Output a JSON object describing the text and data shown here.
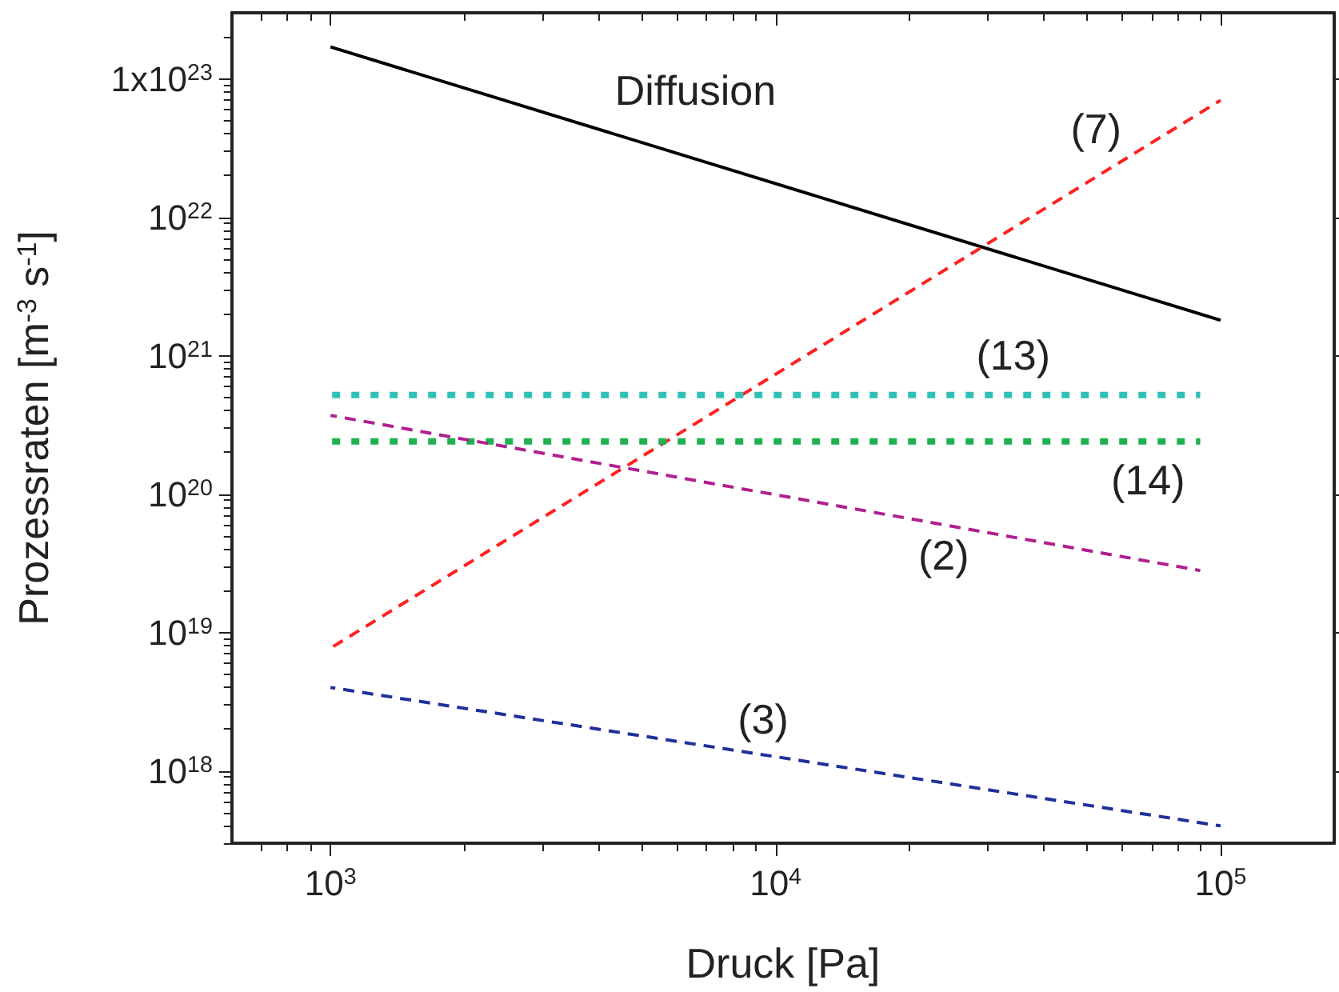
{
  "chart_data": {
    "type": "line",
    "xlabel": "Druck [Pa]",
    "ylabel": "Prozessraten [m$^{-3}$ s$^{-1}$]",
    "log": "xy",
    "grid": false,
    "legend": false,
    "marker": "none",
    "xlim": [
      600,
      180000
    ],
    "xticks": [
      {
        "value": 1000,
        "label": "10$^{3}$"
      },
      {
        "value": 10000,
        "label": "10$^{4}$"
      },
      {
        "value": 100000,
        "label": "10$^{5}$"
      }
    ],
    "ylim": [
      3e+17,
      3e+23
    ],
    "yticks": [
      {
        "value": 1e+18,
        "label": "10$^{18}$"
      },
      {
        "value": 1e+19,
        "label": "10$^{19}$"
      },
      {
        "value": 1e+20,
        "label": "10$^{20}$"
      },
      {
        "value": 1e+21,
        "label": "10$^{21}$"
      },
      {
        "value": 1e+22,
        "label": "10$^{22}$"
      },
      {
        "value": 1e+23,
        "label": "1x10$^{23}$"
      }
    ],
    "series": [
      {
        "name": "Diffusion",
        "color": "#000000",
        "line_style": "solid",
        "x": [
          1000,
          100000
        ],
        "values": [
          1.7e+23,
          1.8e+21
        ]
      },
      {
        "name": "(7)",
        "color": "#ff2020",
        "line_style": "dashed",
        "x": [
          1000,
          100000
        ],
        "values": [
          7.7e+18,
          7e+22
        ]
      },
      {
        "name": "(13)",
        "color": "#30c0b8",
        "line_style": "dotted",
        "x": [
          1000,
          90000
        ],
        "values": [
          5.2e+20,
          5.2e+20
        ]
      },
      {
        "name": "(14)",
        "color": "#20b050",
        "line_style": "dotted",
        "x": [
          1000,
          90000
        ],
        "values": [
          2.4e+20,
          2.4e+20
        ]
      },
      {
        "name": "(2)",
        "color": "#b0208f",
        "line_style": "dashed",
        "x": [
          1000,
          90000
        ],
        "values": [
          3.7e+20,
          2.8e+19
        ]
      },
      {
        "name": "(3)",
        "color": "#20309a",
        "line_style": "dashed",
        "x": [
          1000,
          100000
        ],
        "values": [
          4e+18,
          4e+17
        ]
      }
    ]
  }
}
